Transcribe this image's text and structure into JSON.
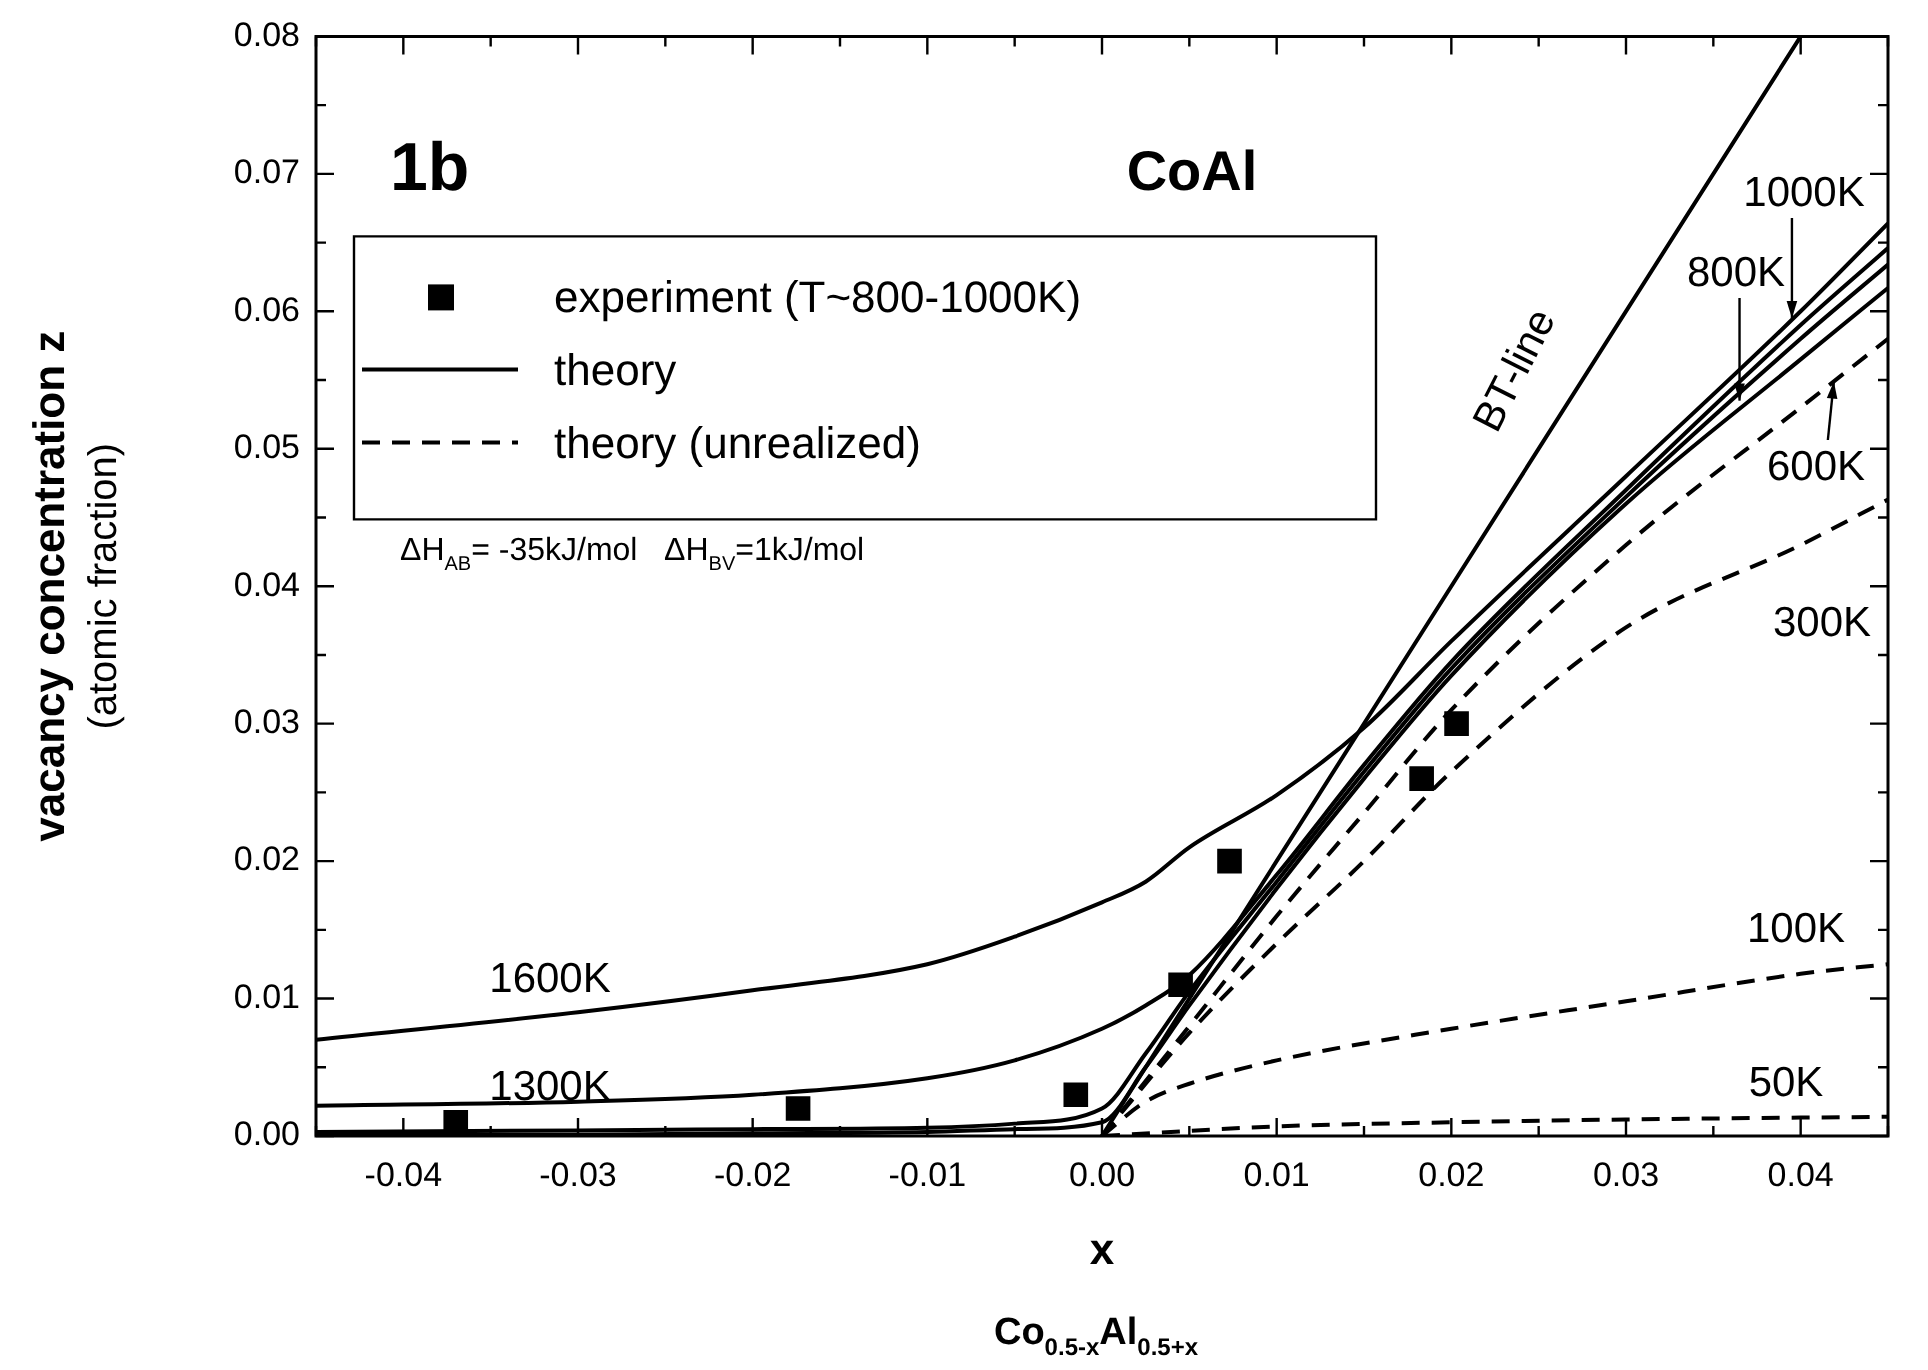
{
  "chart_data": {
    "type": "line",
    "title": "CoAl",
    "xlabel": "x",
    "ylabel": "vacancy concentration z\n(atomic fraction)",
    "xlim": [
      -0.045,
      0.045
    ],
    "ylim": [
      0,
      0.08
    ],
    "xticks": [
      {
        "value": -0.045,
        "label": null
      },
      -0.04,
      {
        "value": -0.035,
        "label": null
      },
      -0.03,
      {
        "value": -0.025,
        "label": null
      },
      -0.02,
      {
        "value": -0.015,
        "label": null
      },
      -0.01,
      {
        "value": -0.005,
        "label": null
      },
      {
        "value": 0,
        "label": "0.00"
      },
      {
        "value": 0.005,
        "label": null
      },
      0.01,
      {
        "value": 0.015,
        "label": null
      },
      0.02,
      {
        "value": 0.025,
        "label": null
      },
      0.03,
      {
        "value": 0.035,
        "label": null
      },
      0.04,
      {
        "value": 0.045,
        "label": null
      }
    ],
    "yticks": [
      {
        "value": 0,
        "label": "0.00"
      },
      {
        "value": 0.005,
        "label": null
      },
      0.01,
      {
        "value": 0.015,
        "label": null
      },
      0.02,
      {
        "value": 0.025,
        "label": null
      },
      0.03,
      {
        "value": 0.035,
        "label": null
      },
      0.04,
      {
        "value": 0.045,
        "label": null
      },
      0.05,
      {
        "value": 0.055,
        "label": null
      },
      0.06,
      {
        "value": 0.065,
        "label": null
      },
      0.07,
      {
        "value": 0.075,
        "label": null
      },
      0.08
    ],
    "legend": "top left",
    "series": [
      {
        "name": "experiment (T~800-1000K)",
        "type": "scatter",
        "marker": "square",
        "color": "#000000",
        "x": [
          -0.037,
          -0.0174,
          -0.0015,
          0.0045,
          0.0073,
          0.0183,
          0.0203
        ],
        "values": [
          0.001,
          0.002,
          0.003,
          0.011,
          0.02,
          0.026,
          0.03
        ]
      },
      {
        "name": "theory",
        "line_style": "solid",
        "color": "#000000",
        "x": [
          -0.045,
          -0.03,
          -0.02,
          -0.01,
          -0.005,
          0,
          0.0025,
          0.005,
          0.01,
          0.015,
          0.02,
          0.03,
          0.04,
          0.045
        ],
        "values": [
          0.007,
          0.009,
          0.0106,
          0.0125,
          0.0145,
          0.017,
          0.0185,
          0.021,
          0.0248,
          0.0297,
          0.036,
          0.048,
          0.06,
          0.0664
        ]
      },
      {
        "line_style": "solid",
        "color": "#000000",
        "x": [
          -0.045,
          -0.03,
          -0.02,
          -0.01,
          -0.005,
          0,
          0.0025,
          0.005,
          0.01,
          0.015,
          0.02,
          0.03,
          0.04,
          0.045
        ],
        "values": [
          0.0022,
          0.0025,
          0.003,
          0.0042,
          0.0055,
          0.0078,
          0.0095,
          0.0117,
          0.019,
          0.027,
          0.0345,
          0.047,
          0.059,
          0.0646
        ]
      },
      {
        "line_style": "solid",
        "color": "#000000",
        "x": [
          -0.045,
          -0.03,
          -0.02,
          -0.01,
          -0.005,
          0,
          0.0025,
          0.005,
          0.01,
          0.015,
          0.02,
          0.03,
          0.04,
          0.045
        ],
        "values": [
          0.0003,
          0.0004,
          0.0005,
          0.0006,
          0.0009,
          0.002,
          0.006,
          0.0105,
          0.0185,
          0.0265,
          0.034,
          0.0465,
          0.058,
          0.0634
        ]
      },
      {
        "line_style": "solid",
        "color": "#000000",
        "x": [
          -0.045,
          -0.03,
          -0.02,
          -0.01,
          -0.005,
          0,
          0.0025,
          0.005,
          0.01,
          0.015,
          0.02,
          0.03,
          0.04,
          0.045
        ],
        "values": [
          0.0001,
          0.0001,
          0.0002,
          0.0003,
          0.0005,
          0.001,
          0.005,
          0.0095,
          0.018,
          0.026,
          0.0335,
          0.046,
          0.0565,
          0.0617
        ]
      },
      {
        "name": "theory (unrealized)",
        "line_style": "dashed",
        "color": "#000000",
        "x": [
          0,
          0.005,
          0.01,
          0.015,
          0.02,
          0.03,
          0.04,
          0.045
        ],
        "values": [
          0,
          0.008,
          0.016,
          0.0235,
          0.031,
          0.043,
          0.053,
          0.058
        ]
      },
      {
        "line_style": "dashed",
        "color": "#000000",
        "x": [
          0,
          0.005,
          0.01,
          0.015,
          0.02,
          0.03,
          0.04,
          0.045
        ],
        "values": [
          0,
          0.0075,
          0.014,
          0.02,
          0.0265,
          0.037,
          0.043,
          0.0463
        ]
      },
      {
        "line_style": "dashed",
        "color": "#000000",
        "x": [
          0,
          0.0025,
          0.005,
          0.01,
          0.02,
          0.03,
          0.04,
          0.045
        ],
        "values": [
          0,
          0.0025,
          0.0038,
          0.0055,
          0.0078,
          0.0098,
          0.0118,
          0.0125
        ]
      },
      {
        "line_style": "dashed",
        "color": "#000000",
        "x": [
          0,
          0.01,
          0.02,
          0.03,
          0.045
        ],
        "values": [
          0,
          0.0007,
          0.001,
          0.0012,
          0.0014
        ]
      },
      {
        "line_style": "solid",
        "color": "#000000",
        "x": [
          0,
          0.04
        ],
        "values": [
          0,
          0.08
        ]
      }
    ],
    "annotations": [
      "1b",
      "ΔH$_{AB}$= -35kJ/mol   ΔH$_{BV}$=1kJ/mol",
      "Co$_{0.5-x}$Al$_{0.5+x}$",
      "1600K",
      "1300K",
      {
        "text": "1000K",
        "x": 0.0395,
        "y": 0.0595
      },
      {
        "text": "800K",
        "x": 0.0365,
        "y": 0.0535
      },
      {
        "text": "600K",
        "x": 0.0419,
        "y": 0.0549
      },
      "300K",
      "100K",
      "50K",
      "BT-line"
    ]
  }
}
